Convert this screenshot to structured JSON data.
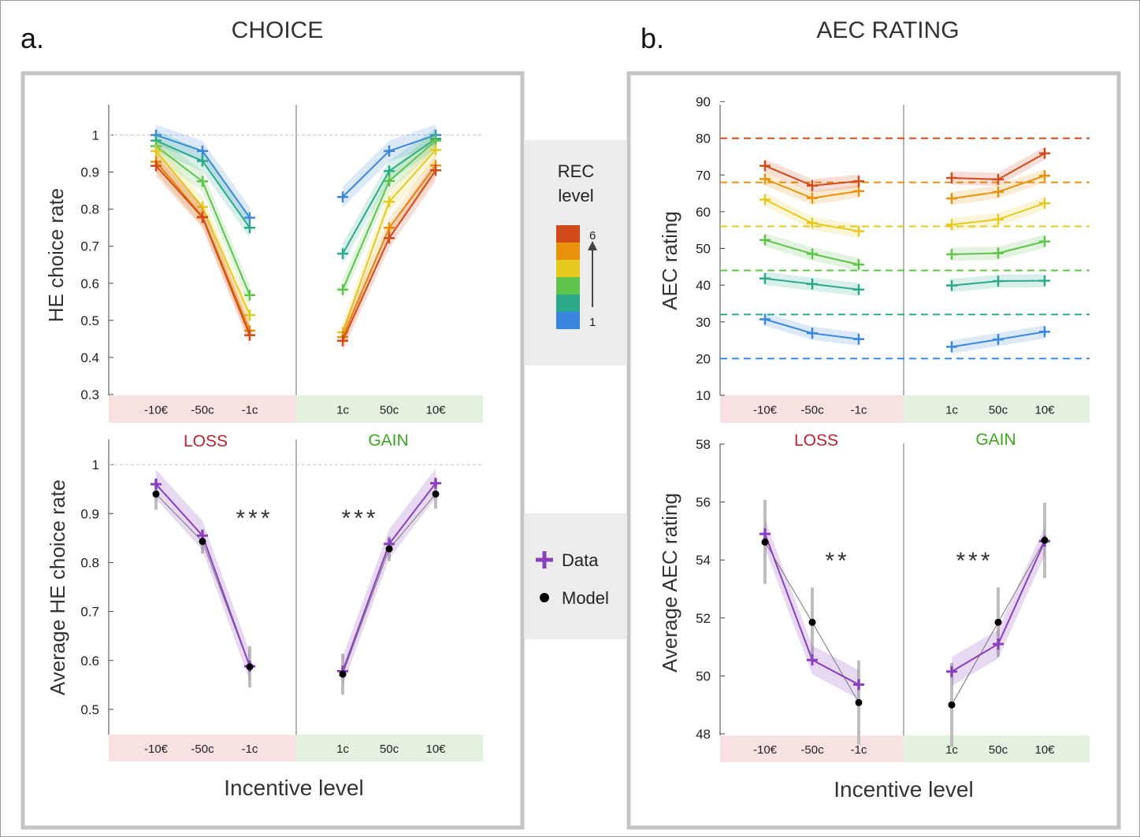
{
  "panels": {
    "a": {
      "letter": "a.",
      "title": "CHOICE"
    },
    "b": {
      "letter": "b.",
      "title": "AEC RATING"
    }
  },
  "x_label": "Incentive level",
  "loss_label": "LOSS",
  "gain_label": "GAIN",
  "legend_rec": {
    "title_line1": "REC",
    "title_line2": "level",
    "high": "6",
    "low": "1",
    "colors": [
      "#d24a1a",
      "#e8920a",
      "#e5c91f",
      "#5ec44b",
      "#2aaa8a",
      "#3a87e0"
    ]
  },
  "legend_model": {
    "data_label": "Data",
    "model_label": "Model",
    "data_color": "#8a3fbf",
    "model_color": "#000000"
  },
  "colors": {
    "rec": [
      "#3a87e0",
      "#2aaa8a",
      "#5ec44b",
      "#e5c91f",
      "#e8920a",
      "#d24a1a"
    ],
    "data": "#8a3fbf",
    "loss_band": "#f8e1e1",
    "gain_band": "#e3f2df",
    "loss_text": "#c0202a",
    "gain_text": "#3aa81e"
  },
  "chart_data": [
    {
      "id": "choice-top",
      "type": "line",
      "ylabel": "HE choice rate",
      "ylim": [
        0.3,
        1.05
      ],
      "yticks": [
        "0.3",
        "0.4",
        "0.5",
        "0.6",
        "0.7",
        "0.8",
        "0.9",
        "1"
      ],
      "categories": [
        "-10€",
        "-50c",
        "-1c",
        "1c",
        "50c",
        "10€"
      ],
      "reference_line": 1,
      "series": [
        {
          "name": "1",
          "loss": [
            1.0,
            0.957,
            0.777
          ],
          "gain": [
            0.833,
            0.957,
            1.0
          ]
        },
        {
          "name": "2",
          "loss": [
            0.985,
            0.93,
            0.75
          ],
          "gain": [
            0.68,
            0.903,
            0.99
          ]
        },
        {
          "name": "3",
          "loss": [
            0.97,
            0.875,
            0.568
          ],
          "gain": [
            0.583,
            0.876,
            0.985
          ]
        },
        {
          "name": "4",
          "loss": [
            0.957,
            0.806,
            0.514
          ],
          "gain": [
            0.468,
            0.82,
            0.96
          ]
        },
        {
          "name": "5",
          "loss": [
            0.928,
            0.78,
            0.472
          ],
          "gain": [
            0.455,
            0.75,
            0.918
          ]
        },
        {
          "name": "6",
          "loss": [
            0.917,
            0.778,
            0.46
          ],
          "gain": [
            0.445,
            0.722,
            0.905
          ]
        }
      ]
    },
    {
      "id": "choice-bottom",
      "type": "line",
      "ylabel": "Average HE choice rate",
      "ylim": [
        0.45,
        1.05
      ],
      "yticks": [
        "0.5",
        "0.6",
        "0.7",
        "0.8",
        "0.9",
        "1"
      ],
      "categories": [
        "-10€",
        "-50c",
        "-1c",
        "1c",
        "50c",
        "10€"
      ],
      "reference_line": 1,
      "significance": {
        "loss": "***",
        "gain": "***"
      },
      "series": [
        {
          "name": "Data",
          "loss": [
            0.96,
            0.855,
            0.588
          ],
          "gain": [
            0.578,
            0.838,
            0.962
          ]
        },
        {
          "name": "Model",
          "loss": [
            0.94,
            0.843,
            0.587
          ],
          "gain": [
            0.572,
            0.828,
            0.94
          ]
        }
      ]
    },
    {
      "id": "aec-top",
      "type": "line",
      "ylabel": "AEC rating",
      "ylim": [
        10,
        90
      ],
      "yticks": [
        "10",
        "20",
        "30",
        "40",
        "50",
        "60",
        "70",
        "80",
        "90"
      ],
      "categories": [
        "-10€",
        "-50c",
        "-1c",
        "1c",
        "50c",
        "10€"
      ],
      "reference_lines": [
        20,
        32,
        44,
        56,
        68,
        80
      ],
      "series": [
        {
          "name": "1",
          "loss": [
            30.7,
            26.9,
            25.3
          ],
          "gain": [
            23.2,
            25.2,
            27.3
          ]
        },
        {
          "name": "2",
          "loss": [
            41.8,
            40.3,
            38.8
          ],
          "gain": [
            39.9,
            41.1,
            41.2
          ]
        },
        {
          "name": "3",
          "loss": [
            52.3,
            48.5,
            45.6
          ],
          "gain": [
            48.4,
            48.7,
            51.9
          ]
        },
        {
          "name": "4",
          "loss": [
            63.3,
            56.9,
            54.7
          ],
          "gain": [
            56.5,
            57.9,
            62.3
          ]
        },
        {
          "name": "5",
          "loss": [
            68.9,
            63.7,
            65.6
          ],
          "gain": [
            63.6,
            65.4,
            69.8
          ]
        },
        {
          "name": "6",
          "loss": [
            72.5,
            67.1,
            68.3
          ],
          "gain": [
            69.2,
            68.8,
            75.9
          ]
        }
      ]
    },
    {
      "id": "aec-bottom",
      "type": "line",
      "ylabel": "Average AEC rating",
      "ylim": [
        48,
        58
      ],
      "yticks": [
        "48",
        "50",
        "52",
        "54",
        "56",
        "58"
      ],
      "categories": [
        "-10€",
        "-50c",
        "-1c",
        "1c",
        "50c",
        "10€"
      ],
      "significance": {
        "loss": "**",
        "gain": "***"
      },
      "series": [
        {
          "name": "Data",
          "loss": [
            54.9,
            50.55,
            49.7
          ],
          "gain": [
            50.15,
            51.1,
            54.65
          ]
        },
        {
          "name": "Model",
          "loss": [
            54.62,
            51.85,
            49.08
          ],
          "gain": [
            49.0,
            51.85,
            54.68
          ]
        }
      ]
    }
  ]
}
